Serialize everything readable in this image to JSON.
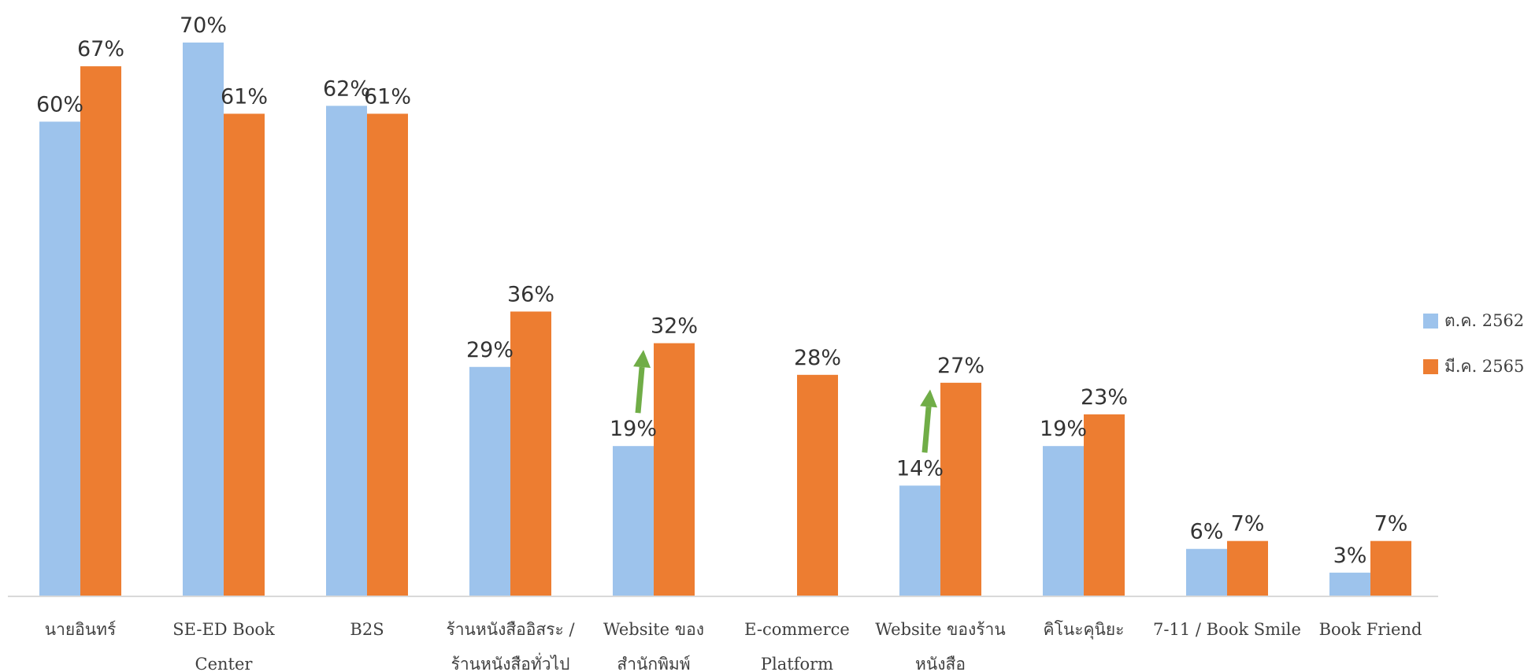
{
  "chart_data": {
    "type": "bar",
    "categories": [
      [
        "นายอินทร์"
      ],
      [
        "SE-ED Book",
        "Center"
      ],
      [
        "B2S"
      ],
      [
        "ร้านหนังสืออิสระ /",
        "ร้านหนังสือทั่วไป"
      ],
      [
        "Website ของ",
        "สำนักพิมพ์"
      ],
      [
        "E-commerce",
        "Platform"
      ],
      [
        "Website ของร้าน",
        "หนังสือ"
      ],
      [
        "คิโนะคุนิยะ"
      ],
      [
        "7-11 / Book Smile"
      ],
      [
        "Book Friend"
      ]
    ],
    "series": [
      {
        "name": "ต.ค. 2562",
        "color": "#9DC3EC",
        "values": [
          60,
          70,
          62,
          29,
          19,
          null,
          14,
          19,
          6,
          3
        ],
        "labels": [
          "60%",
          "70%",
          "62%",
          "29%",
          "19%",
          "",
          "14%",
          "19%",
          "6%",
          "3%"
        ]
      },
      {
        "name": "มี.ค. 2565",
        "color": "#ED7D31",
        "values": [
          67,
          61,
          61,
          36,
          32,
          28,
          27,
          23,
          7,
          7
        ],
        "labels": [
          "67%",
          "61%",
          "61%",
          "36%",
          "32%",
          "28%",
          "27%",
          "23%",
          "7%",
          "7%"
        ]
      }
    ],
    "ylim": [
      0,
      70
    ],
    "grid": false,
    "legend_position": "right",
    "annotations": [
      {
        "type": "arrow",
        "category_index": 4,
        "color": "#70AD47"
      },
      {
        "type": "arrow",
        "category_index": 6,
        "color": "#70AD47"
      }
    ]
  }
}
